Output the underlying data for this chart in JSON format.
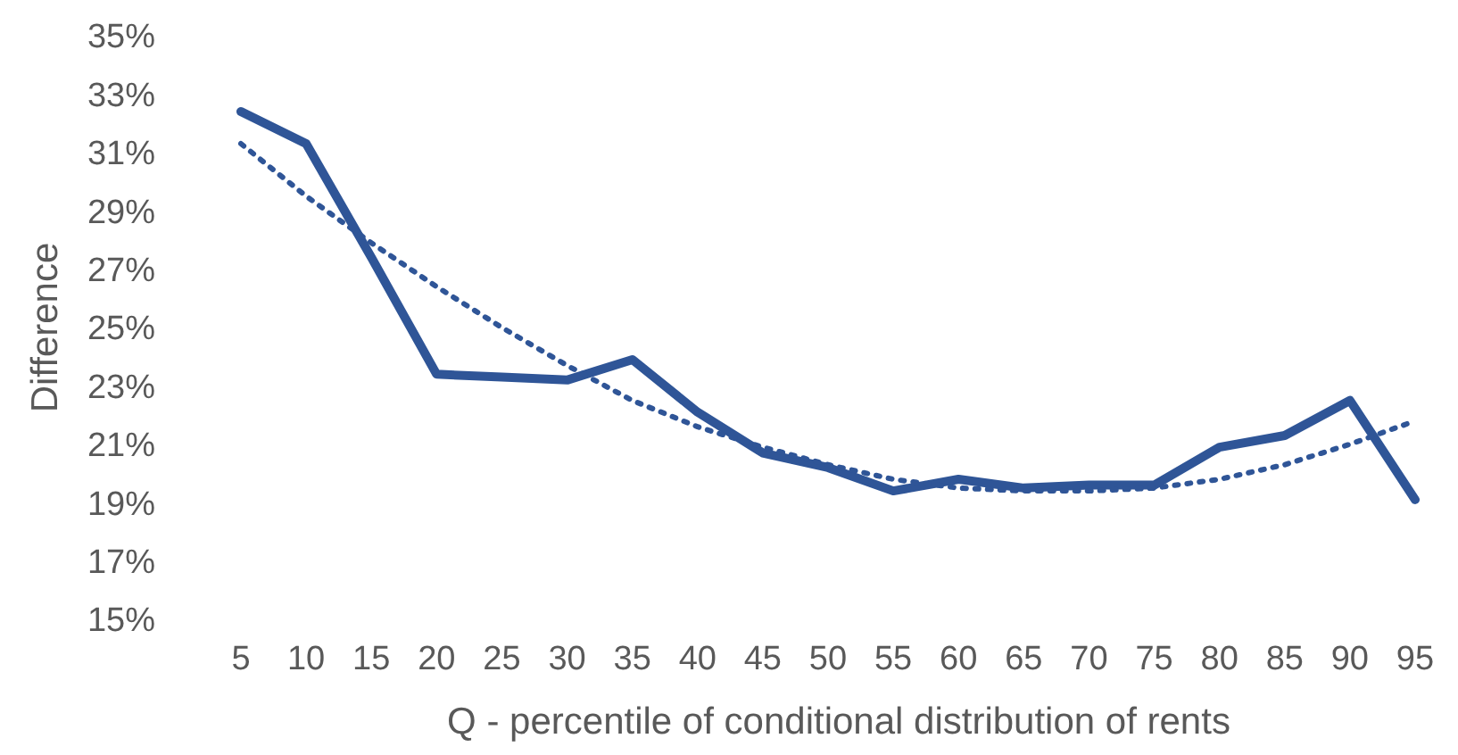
{
  "chart_data": {
    "type": "line",
    "xlabel": "Q - percentile of conditional distribution of rents",
    "ylabel": "Difference",
    "categories": [
      "5",
      "10",
      "15",
      "20",
      "25",
      "30",
      "35",
      "40",
      "45",
      "50",
      "55",
      "60",
      "65",
      "70",
      "75",
      "80",
      "85",
      "90",
      "95"
    ],
    "series": [
      {
        "color": "#2f5597",
        "line_style": "solid",
        "values": [
          32.4,
          31.3,
          27.4,
          23.4,
          23.3,
          23.2,
          23.9,
          22.1,
          20.7,
          20.2,
          19.4,
          19.8,
          19.5,
          19.6,
          19.6,
          20.9,
          21.3,
          22.5,
          19.1
        ]
      },
      {
        "type": "line",
        "color": "#2f5597",
        "line_style": "dotted",
        "values": [
          31.3,
          29.5,
          27.9,
          26.4,
          25,
          23.7,
          22.5,
          21.6,
          20.9,
          20.3,
          19.8,
          19.5,
          19.4,
          19.4,
          19.5,
          19.8,
          20.3,
          21,
          21.8
        ]
      }
    ],
    "ylim": [
      15,
      35
    ],
    "yticks": [
      {
        "value": 15,
        "label": "15%"
      },
      {
        "value": 17,
        "label": "17%"
      },
      {
        "value": 19,
        "label": "19%"
      },
      {
        "value": 21,
        "label": "21%"
      },
      {
        "value": 23,
        "label": "23%"
      },
      {
        "value": 25,
        "label": "25%"
      },
      {
        "value": 27,
        "label": "27%"
      },
      {
        "value": 29,
        "label": "29%"
      },
      {
        "value": 31,
        "label": "31%"
      },
      {
        "value": 33,
        "label": "33%"
      },
      {
        "value": 35,
        "label": "35%"
      }
    ],
    "marker": "none"
  }
}
